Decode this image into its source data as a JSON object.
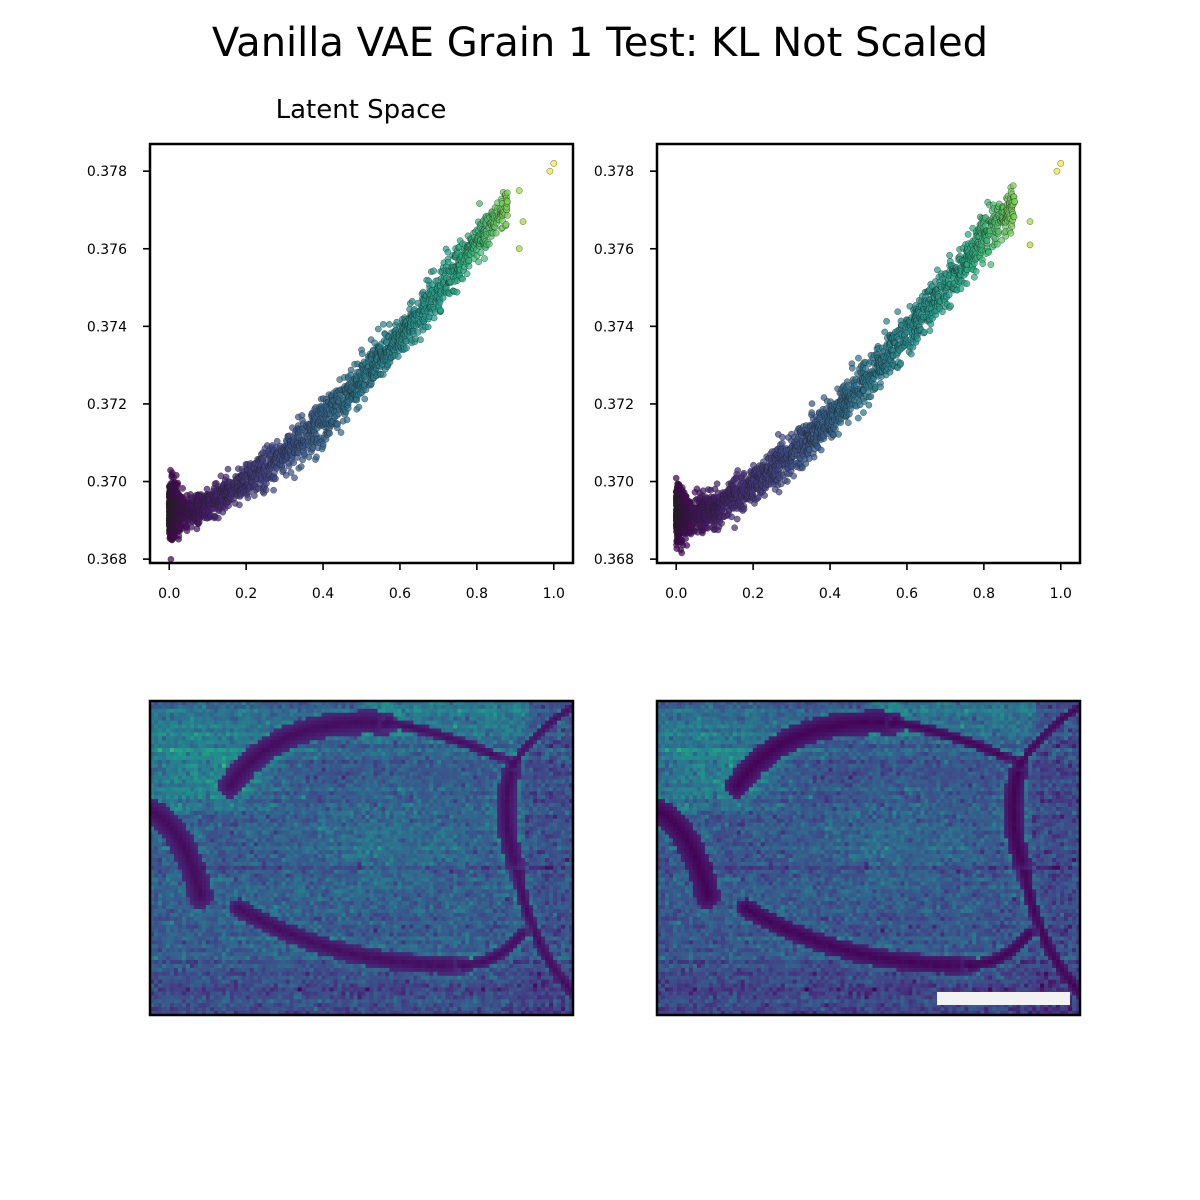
{
  "figure": {
    "title": "Vanilla VAE Grain 1 Test: KL Not Scaled"
  },
  "chart_data": [
    {
      "type": "scatter",
      "panel": "top-left",
      "title": "Latent Space",
      "xlabel": "",
      "ylabel": "",
      "xlim": [
        -0.05,
        1.05
      ],
      "ylim": [
        0.3679,
        0.3787
      ],
      "x_ticks": [
        0.0,
        0.2,
        0.4,
        0.6,
        0.8,
        1.0
      ],
      "x_tick_labels": [
        "0.0",
        "0.2",
        "0.4",
        "0.6",
        "0.8",
        "1.0"
      ],
      "y_ticks": [
        0.368,
        0.37,
        0.372,
        0.374,
        0.376,
        0.378
      ],
      "y_tick_labels": [
        "0.368",
        "0.370",
        "0.372",
        "0.374",
        "0.376",
        "0.378"
      ],
      "grid": false,
      "colormap": "viridis",
      "trend": {
        "x": [
          0.0,
          0.05,
          0.1,
          0.2,
          0.3,
          0.4,
          0.5,
          0.6,
          0.7,
          0.8,
          0.9,
          1.0
        ],
        "y_center": [
          0.3693,
          0.3692,
          0.3694,
          0.37,
          0.3707,
          0.3716,
          0.3726,
          0.3737,
          0.3749,
          0.3762,
          0.3774,
          0.3781
        ],
        "y_spread": [
          0.0006,
          0.0004,
          0.0004,
          0.0004,
          0.0005,
          0.0005,
          0.0005,
          0.0005,
          0.0005,
          0.0005,
          0.0004,
          0.0001
        ]
      },
      "outliers": [
        [
          0.99,
          0.378
        ],
        [
          1.0,
          0.3782
        ],
        [
          0.91,
          0.3775
        ],
        [
          0.92,
          0.3767
        ],
        [
          0.91,
          0.376
        ],
        [
          0.85,
          0.3764
        ]
      ]
    },
    {
      "type": "scatter",
      "panel": "top-right",
      "title": "",
      "xlabel": "",
      "ylabel": "",
      "xlim": [
        -0.05,
        1.05
      ],
      "ylim": [
        0.3679,
        0.3787
      ],
      "x_ticks": [
        0.0,
        0.2,
        0.4,
        0.6,
        0.8,
        1.0
      ],
      "x_tick_labels": [
        "0.0",
        "0.2",
        "0.4",
        "0.6",
        "0.8",
        "1.0"
      ],
      "y_ticks": [
        0.368,
        0.37,
        0.372,
        0.374,
        0.376,
        0.378
      ],
      "y_tick_labels": [
        "0.368",
        "0.370",
        "0.372",
        "0.374",
        "0.376",
        "0.378"
      ],
      "grid": false,
      "colormap": "viridis",
      "trend": {
        "x": [
          0.0,
          0.05,
          0.1,
          0.2,
          0.3,
          0.4,
          0.5,
          0.6,
          0.7,
          0.8,
          0.9,
          1.0
        ],
        "y_center": [
          0.3692,
          0.3691,
          0.3693,
          0.3699,
          0.3707,
          0.3716,
          0.3727,
          0.3738,
          0.375,
          0.3763,
          0.3774,
          0.3781
        ],
        "y_spread": [
          0.0006,
          0.0004,
          0.0004,
          0.0004,
          0.0005,
          0.0005,
          0.0005,
          0.0005,
          0.0005,
          0.0005,
          0.0004,
          0.0001
        ]
      },
      "outliers": [
        [
          0.99,
          0.378
        ],
        [
          1.0,
          0.3782
        ],
        [
          0.92,
          0.3767
        ],
        [
          0.92,
          0.3761
        ],
        [
          0.87,
          0.3764
        ],
        [
          0.81,
          0.3772
        ]
      ]
    },
    {
      "type": "heatmap",
      "panel": "bottom-left",
      "title": "",
      "colormap": "viridis",
      "axes": "off"
    },
    {
      "type": "heatmap",
      "panel": "bottom-right",
      "title": "",
      "colormap": "viridis",
      "axes": "off",
      "scale_bar": true
    }
  ]
}
